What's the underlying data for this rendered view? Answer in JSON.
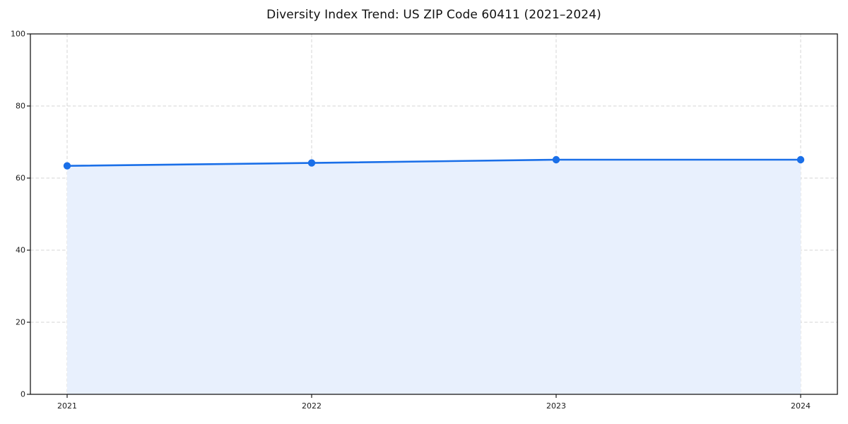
{
  "page": {
    "background": "#ffffff"
  },
  "chart_data": {
    "type": "area",
    "title": "Diversity Index Trend: US ZIP Code 60411 (2021–2024)",
    "categories": [
      "2021",
      "2022",
      "2023",
      "2024"
    ],
    "series": [
      {
        "name": "Diversity Index",
        "values": [
          63.4,
          64.2,
          65.1,
          65.1
        ]
      }
    ],
    "xlabel": "",
    "ylabel": "",
    "ylim": [
      0,
      100
    ],
    "yticks": [
      0,
      20,
      40,
      60,
      80,
      100
    ],
    "grid": true,
    "grid_style": "dashed",
    "legend_position": "none",
    "marker": "circle",
    "colors": {
      "line": "#1a6fe8",
      "marker": "#1a6fe8",
      "fill": "#e8f0fd",
      "grid": "#d4d4d4",
      "spine": "#1a1a1a",
      "tick_label": "#1a1a1a",
      "title": "#111111",
      "background": "#ffffff"
    }
  }
}
